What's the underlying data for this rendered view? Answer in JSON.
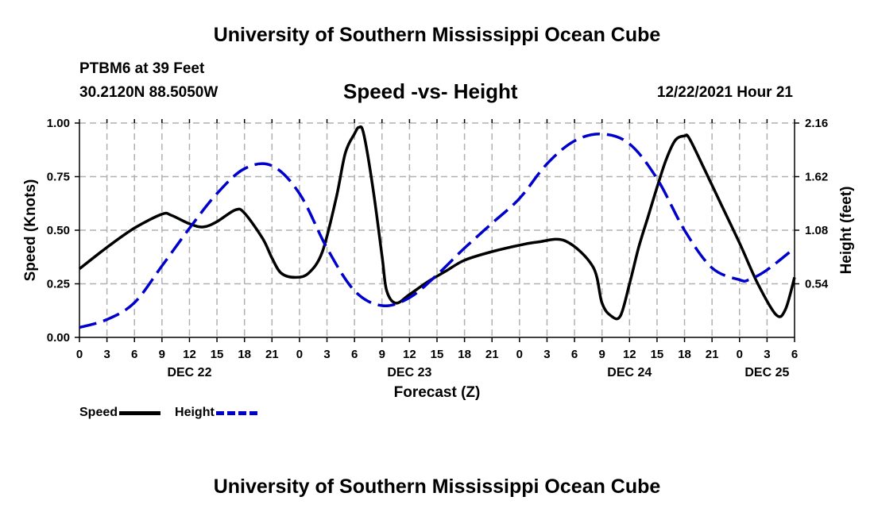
{
  "header": {
    "title": "University of Southern Mississippi Ocean Cube",
    "station": "PTBM6 at 39 Feet",
    "coords": "30.2120N  88.5050W",
    "subtitle": "Speed -vs- Height",
    "datetime": "12/22/2021 Hour 21"
  },
  "footer": {
    "title": "University of Southern Mississippi Ocean Cube"
  },
  "legend": {
    "speed_label": "Speed",
    "height_label": "Height"
  },
  "colors": {
    "speed": "#000000",
    "height": "#0000cc",
    "grid": "#b0b0b0"
  },
  "chart_data": {
    "type": "line",
    "title": "Speed -vs- Height",
    "xlabel": "Forecast (Z)",
    "ylabel": "Speed (Knots)",
    "y2label": "Height (feet)",
    "x_unit": "hours since DEC 22 00Z",
    "xlim": [
      0,
      78
    ],
    "ylim": [
      0,
      1
    ],
    "y2lim": [
      0,
      2.16
    ],
    "x_ticks": [
      0,
      3,
      6,
      9,
      12,
      15,
      18,
      21,
      24,
      27,
      30,
      33,
      36,
      39,
      42,
      45,
      48,
      51,
      54,
      57,
      60,
      63,
      66,
      69,
      72,
      75,
      78
    ],
    "x_tick_labels": [
      "0",
      "3",
      "6",
      "9",
      "12",
      "15",
      "18",
      "21",
      "0",
      "3",
      "6",
      "9",
      "12",
      "15",
      "18",
      "21",
      "0",
      "3",
      "6",
      "9",
      "12",
      "15",
      "18",
      "21",
      "0",
      "3",
      "6"
    ],
    "day_labels": [
      {
        "x": 12,
        "label": "DEC 22"
      },
      {
        "x": 36,
        "label": "DEC 23"
      },
      {
        "x": 60,
        "label": "DEC 24"
      },
      {
        "x": 75,
        "label": "DEC 25"
      }
    ],
    "y_ticks": [
      0,
      0.25,
      0.5,
      0.75,
      1.0
    ],
    "y_tick_labels": [
      "0.00",
      "0.25",
      "0.50",
      "0.75",
      "1.00"
    ],
    "y2_ticks": [
      0.54,
      1.08,
      1.62,
      2.16
    ],
    "y2_tick_labels": [
      "0.54",
      "1.08",
      "1.62",
      "2.16"
    ],
    "grid": true,
    "series": [
      {
        "name": "Speed",
        "axis": "left",
        "style": "solid",
        "x": [
          0,
          3,
          6,
          9,
          10,
          12,
          13.5,
          15,
          17,
          18,
          20,
          21,
          22,
          23.5,
          25,
          26.5,
          28,
          29,
          30,
          30.5,
          31,
          32,
          33,
          33.5,
          34.5,
          36,
          38,
          40,
          42,
          45,
          48,
          50,
          53,
          56,
          57,
          58,
          59,
          60,
          61,
          62,
          63,
          64,
          65,
          66,
          66.5,
          68,
          70,
          72,
          74,
          76,
          77,
          78
        ],
        "values": [
          0.32,
          0.42,
          0.51,
          0.575,
          0.57,
          0.53,
          0.515,
          0.54,
          0.595,
          0.58,
          0.46,
          0.37,
          0.3,
          0.28,
          0.3,
          0.4,
          0.65,
          0.86,
          0.95,
          0.98,
          0.95,
          0.7,
          0.38,
          0.22,
          0.16,
          0.2,
          0.26,
          0.31,
          0.36,
          0.4,
          0.43,
          0.445,
          0.45,
          0.33,
          0.16,
          0.1,
          0.1,
          0.25,
          0.42,
          0.56,
          0.7,
          0.83,
          0.92,
          0.94,
          0.93,
          0.8,
          0.62,
          0.44,
          0.25,
          0.105,
          0.13,
          0.28
        ]
      },
      {
        "name": "Height",
        "axis": "right",
        "style": "dashed",
        "values": [
          0.1,
          0.18,
          0.35,
          0.72,
          1.1,
          1.45,
          1.7,
          1.73,
          1.45,
          0.9,
          0.47,
          0.32,
          0.4,
          0.63,
          0.9,
          1.15,
          1.4,
          1.75,
          1.98,
          2.05,
          1.95,
          1.6,
          1.08,
          0.7,
          0.58,
          0.58,
          0.68,
          0.9
        ],
        "x": [
          0,
          3,
          6,
          9,
          12,
          15,
          18,
          21,
          24,
          27,
          30,
          33,
          36,
          39,
          42,
          45,
          48,
          51,
          54,
          57,
          60,
          63,
          66,
          69,
          72,
          73,
          75,
          78
        ]
      }
    ]
  }
}
